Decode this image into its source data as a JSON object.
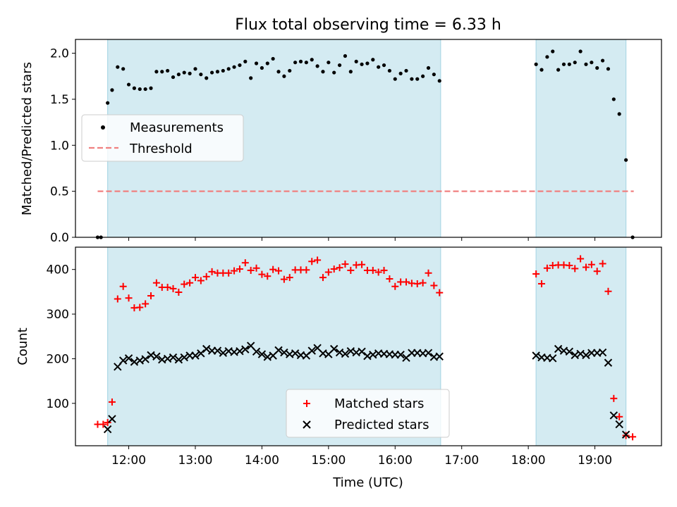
{
  "figure": {
    "title": "Flux total observing time = 6.33 h"
  },
  "colors": {
    "shade": "#add8e6",
    "threshold": "#f08080",
    "measurement": "#000000",
    "matched": "#ff0000",
    "predicted": "#000000"
  },
  "chart_data": [
    {
      "type": "scatter",
      "ylabel": "Matched/Predicted stars",
      "xlabel": "",
      "ylim": [
        0,
        2.15
      ],
      "yticks": [
        "0.0",
        "0.5",
        "1.0",
        "1.5",
        "2.0"
      ],
      "xlim": [
        "11:12",
        "20:00"
      ],
      "shaded_intervals": [
        [
          "11:41",
          "16:41"
        ],
        [
          "18:07",
          "19:28"
        ]
      ],
      "legend": {
        "placement": "center-left",
        "entries": [
          "Measurements",
          "Threshold"
        ]
      },
      "threshold": {
        "name": "Threshold",
        "value": 0.5,
        "x_range": [
          "11:32",
          "19:35"
        ]
      },
      "series": [
        {
          "name": "Measurements",
          "points": [
            [
              "11:32",
              0.0
            ],
            [
              "11:35",
              0.0
            ],
            [
              "11:41",
              1.46
            ],
            [
              "11:45",
              1.6
            ],
            [
              "11:50",
              1.85
            ],
            [
              "11:55",
              1.83
            ],
            [
              "12:00",
              1.66
            ],
            [
              "12:05",
              1.62
            ],
            [
              "12:10",
              1.61
            ],
            [
              "12:15",
              1.61
            ],
            [
              "12:20",
              1.62
            ],
            [
              "12:25",
              1.8
            ],
            [
              "12:30",
              1.8
            ],
            [
              "12:35",
              1.81
            ],
            [
              "12:40",
              1.74
            ],
            [
              "12:45",
              1.77
            ],
            [
              "12:50",
              1.79
            ],
            [
              "12:55",
              1.78
            ],
            [
              "13:00",
              1.83
            ],
            [
              "13:05",
              1.77
            ],
            [
              "13:10",
              1.73
            ],
            [
              "13:15",
              1.79
            ],
            [
              "13:20",
              1.8
            ],
            [
              "13:25",
              1.81
            ],
            [
              "13:30",
              1.83
            ],
            [
              "13:35",
              1.85
            ],
            [
              "13:40",
              1.87
            ],
            [
              "13:45",
              1.91
            ],
            [
              "13:50",
              1.73
            ],
            [
              "13:55",
              1.89
            ],
            [
              "14:00",
              1.84
            ],
            [
              "14:05",
              1.89
            ],
            [
              "14:10",
              1.94
            ],
            [
              "14:15",
              1.8
            ],
            [
              "14:20",
              1.75
            ],
            [
              "14:25",
              1.81
            ],
            [
              "14:30",
              1.9
            ],
            [
              "14:35",
              1.91
            ],
            [
              "14:40",
              1.9
            ],
            [
              "14:45",
              1.93
            ],
            [
              "14:50",
              1.86
            ],
            [
              "14:55",
              1.8
            ],
            [
              "15:00",
              1.9
            ],
            [
              "15:05",
              1.79
            ],
            [
              "15:10",
              1.87
            ],
            [
              "15:15",
              1.97
            ],
            [
              "15:20",
              1.8
            ],
            [
              "15:25",
              1.91
            ],
            [
              "15:30",
              1.88
            ],
            [
              "15:35",
              1.89
            ],
            [
              "15:40",
              1.93
            ],
            [
              "15:45",
              1.85
            ],
            [
              "15:50",
              1.87
            ],
            [
              "15:55",
              1.81
            ],
            [
              "16:00",
              1.72
            ],
            [
              "16:05",
              1.78
            ],
            [
              "16:10",
              1.81
            ],
            [
              "16:15",
              1.72
            ],
            [
              "16:20",
              1.72
            ],
            [
              "16:25",
              1.75
            ],
            [
              "16:30",
              1.84
            ],
            [
              "16:35",
              1.77
            ],
            [
              "16:40",
              1.7
            ],
            [
              "18:07",
              1.88
            ],
            [
              "18:12",
              1.82
            ],
            [
              "18:17",
              1.96
            ],
            [
              "18:22",
              2.02
            ],
            [
              "18:27",
              1.82
            ],
            [
              "18:32",
              1.88
            ],
            [
              "18:37",
              1.88
            ],
            [
              "18:42",
              1.9
            ],
            [
              "18:47",
              2.02
            ],
            [
              "18:52",
              1.88
            ],
            [
              "18:57",
              1.9
            ],
            [
              "19:02",
              1.84
            ],
            [
              "19:07",
              1.92
            ],
            [
              "19:12",
              1.83
            ],
            [
              "19:17",
              1.5
            ],
            [
              "19:22",
              1.34
            ],
            [
              "19:28",
              0.84
            ],
            [
              "19:34",
              0.0
            ]
          ]
        }
      ]
    },
    {
      "type": "scatter",
      "ylabel": "Count",
      "xlabel": "Time (UTC)",
      "ylim": [
        5,
        450
      ],
      "yticks": [
        "100",
        "200",
        "300",
        "400"
      ],
      "xlim": [
        "11:12",
        "20:00"
      ],
      "xticks": [
        "12:00",
        "13:00",
        "14:00",
        "15:00",
        "16:00",
        "17:00",
        "18:00",
        "19:00"
      ],
      "shaded_intervals": [
        [
          "11:41",
          "16:41"
        ],
        [
          "18:07",
          "19:28"
        ]
      ],
      "legend": {
        "placement": "lower-center",
        "entries": [
          "Matched stars",
          "Predicted stars"
        ]
      },
      "series": [
        {
          "name": "Matched stars",
          "marker": "plus",
          "points": [
            [
              "11:32",
              53
            ],
            [
              "11:37",
              53
            ],
            [
              "11:41",
              57
            ],
            [
              "11:45",
              103
            ],
            [
              "11:50",
              334
            ],
            [
              "11:55",
              362
            ],
            [
              "12:00",
              336
            ],
            [
              "12:05",
              314
            ],
            [
              "12:10",
              315
            ],
            [
              "12:15",
              323
            ],
            [
              "12:20",
              341
            ],
            [
              "12:25",
              370
            ],
            [
              "12:30",
              360
            ],
            [
              "12:35",
              360
            ],
            [
              "12:40",
              357
            ],
            [
              "12:45",
              349
            ],
            [
              "12:50",
              367
            ],
            [
              "12:55",
              370
            ],
            [
              "13:00",
              382
            ],
            [
              "13:05",
              375
            ],
            [
              "13:10",
              384
            ],
            [
              "13:15",
              395
            ],
            [
              "13:20",
              392
            ],
            [
              "13:25",
              392
            ],
            [
              "13:30",
              392
            ],
            [
              "13:35",
              397
            ],
            [
              "13:40",
              401
            ],
            [
              "13:45",
              415
            ],
            [
              "13:50",
              398
            ],
            [
              "13:55",
              403
            ],
            [
              "14:00",
              389
            ],
            [
              "14:05",
              385
            ],
            [
              "14:10",
              400
            ],
            [
              "14:15",
              397
            ],
            [
              "14:20",
              378
            ],
            [
              "14:25",
              382
            ],
            [
              "14:30",
              399
            ],
            [
              "14:35",
              399
            ],
            [
              "14:40",
              399
            ],
            [
              "14:45",
              418
            ],
            [
              "14:50",
              421
            ],
            [
              "14:55",
              382
            ],
            [
              "15:00",
              394
            ],
            [
              "15:05",
              401
            ],
            [
              "15:10",
              404
            ],
            [
              "15:15",
              412
            ],
            [
              "15:20",
              398
            ],
            [
              "15:25",
              410
            ],
            [
              "15:30",
              411
            ],
            [
              "15:35",
              398
            ],
            [
              "15:40",
              398
            ],
            [
              "15:45",
              394
            ],
            [
              "15:50",
              398
            ],
            [
              "15:55",
              379
            ],
            [
              "16:00",
              362
            ],
            [
              "16:05",
              372
            ],
            [
              "16:10",
              372
            ],
            [
              "16:15",
              369
            ],
            [
              "16:20",
              368
            ],
            [
              "16:25",
              370
            ],
            [
              "16:30",
              392
            ],
            [
              "16:35",
              364
            ],
            [
              "16:40",
              348
            ],
            [
              "18:07",
              390
            ],
            [
              "18:12",
              368
            ],
            [
              "18:17",
              403
            ],
            [
              "18:22",
              409
            ],
            [
              "18:27",
              410
            ],
            [
              "18:32",
              410
            ],
            [
              "18:37",
              409
            ],
            [
              "18:42",
              402
            ],
            [
              "18:47",
              424
            ],
            [
              "18:52",
              405
            ],
            [
              "18:57",
              411
            ],
            [
              "19:02",
              396
            ],
            [
              "19:07",
              413
            ],
            [
              "19:12",
              351
            ],
            [
              "19:17",
              111
            ],
            [
              "19:22",
              70
            ],
            [
              "19:28",
              28
            ],
            [
              "19:34",
              25
            ]
          ]
        },
        {
          "name": "Predicted stars",
          "marker": "x",
          "points": [
            [
              "11:41",
              42
            ],
            [
              "11:45",
              65
            ],
            [
              "11:50",
              182
            ],
            [
              "11:55",
              196
            ],
            [
              "12:00",
              201
            ],
            [
              "12:05",
              193
            ],
            [
              "12:10",
              196
            ],
            [
              "12:15",
              199
            ],
            [
              "12:20",
              208
            ],
            [
              "12:25",
              205
            ],
            [
              "12:30",
              198
            ],
            [
              "12:35",
              200
            ],
            [
              "12:40",
              203
            ],
            [
              "12:45",
              198
            ],
            [
              "12:50",
              203
            ],
            [
              "12:55",
              207
            ],
            [
              "13:00",
              207
            ],
            [
              "13:05",
              212
            ],
            [
              "13:10",
              222
            ],
            [
              "13:15",
              218
            ],
            [
              "13:20",
              218
            ],
            [
              "13:25",
              213
            ],
            [
              "13:30",
              217
            ],
            [
              "13:35",
              215
            ],
            [
              "13:40",
              217
            ],
            [
              "13:45",
              221
            ],
            [
              "13:50",
              229
            ],
            [
              "13:55",
              216
            ],
            [
              "14:00",
              210
            ],
            [
              "14:05",
              204
            ],
            [
              "14:10",
              207
            ],
            [
              "14:15",
              219
            ],
            [
              "14:20",
              214
            ],
            [
              "14:25",
              210
            ],
            [
              "14:30",
              212
            ],
            [
              "14:35",
              208
            ],
            [
              "14:40",
              207
            ],
            [
              "14:45",
              218
            ],
            [
              "14:50",
              224
            ],
            [
              "14:55",
              212
            ],
            [
              "15:00",
              210
            ],
            [
              "15:05",
              222
            ],
            [
              "15:10",
              214
            ],
            [
              "15:15",
              211
            ],
            [
              "15:20",
              217
            ],
            [
              "15:25",
              214
            ],
            [
              "15:30",
              216
            ],
            [
              "15:35",
              206
            ],
            [
              "15:40",
              209
            ],
            [
              "15:45",
              212
            ],
            [
              "15:50",
              211
            ],
            [
              "15:55",
              210
            ],
            [
              "16:00",
              209
            ],
            [
              "16:05",
              209
            ],
            [
              "16:10",
              202
            ],
            [
              "16:15",
              213
            ],
            [
              "16:20",
              213
            ],
            [
              "16:25",
              212
            ],
            [
              "16:30",
              213
            ],
            [
              "16:35",
              204
            ],
            [
              "16:40",
              205
            ],
            [
              "18:07",
              207
            ],
            [
              "18:12",
              203
            ],
            [
              "18:17",
              202
            ],
            [
              "18:22",
              201
            ],
            [
              "18:27",
              222
            ],
            [
              "18:32",
              218
            ],
            [
              "18:37",
              216
            ],
            [
              "18:42",
              208
            ],
            [
              "18:47",
              211
            ],
            [
              "18:52",
              208
            ],
            [
              "18:57",
              213
            ],
            [
              "19:02",
              213
            ],
            [
              "19:07",
              214
            ],
            [
              "19:12",
              191
            ],
            [
              "19:17",
              73
            ],
            [
              "19:22",
              53
            ],
            [
              "19:28",
              30
            ]
          ]
        }
      ]
    }
  ]
}
